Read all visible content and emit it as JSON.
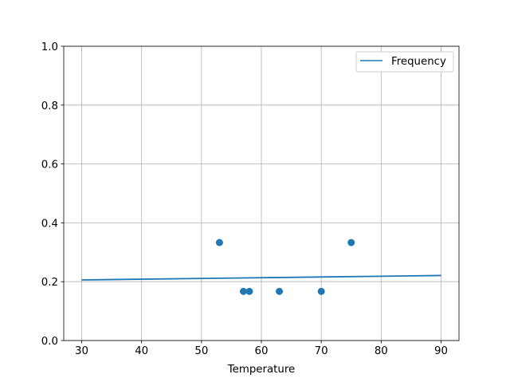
{
  "chart_data": {
    "type": "scatter",
    "title": "",
    "xlabel": "Temperature",
    "ylabel": "",
    "xlim": [
      27,
      93
    ],
    "ylim": [
      0,
      1
    ],
    "xticks": [
      "30",
      "40",
      "50",
      "60",
      "70",
      "80",
      "90"
    ],
    "yticks": [
      "0.0",
      "0.2",
      "0.4",
      "0.6",
      "0.8",
      "1.0"
    ],
    "grid": true,
    "legend": {
      "position": "top-right",
      "entries": [
        "Frequency"
      ]
    },
    "color": "#1f77b4",
    "series": [
      {
        "name": "Frequency",
        "kind": "line",
        "x": [
          30,
          90
        ],
        "y": [
          0.206,
          0.221
        ]
      },
      {
        "kind": "scatter",
        "x": [
          53,
          57,
          58,
          63,
          70,
          75
        ],
        "y": [
          0.333,
          0.167,
          0.167,
          0.167,
          0.167,
          0.333
        ]
      }
    ]
  }
}
